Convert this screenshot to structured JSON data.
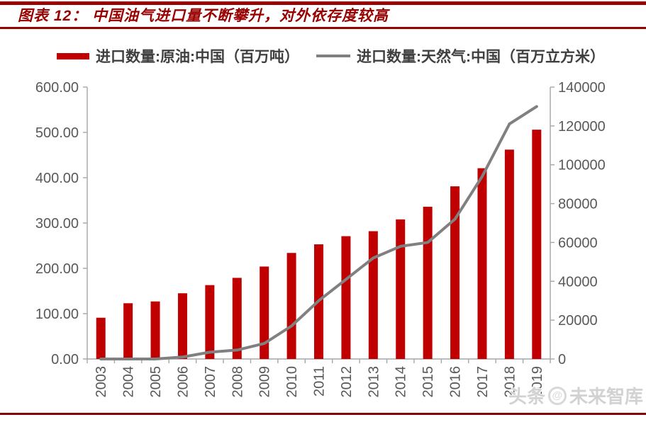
{
  "title": {
    "text": "图表 12：  中国油气进口量不断攀升，对外依存度较高"
  },
  "legend": {
    "crude": {
      "label": "进口数量:原油:中国（百万吨）",
      "color": "#c00000"
    },
    "gas": {
      "label": "进口数量:天然气:中国（百万立方米）",
      "color": "#808080"
    }
  },
  "watermark": {
    "prefix": "头条",
    "suffix": "未来智库",
    "logo": "at-circle"
  },
  "colors": {
    "brand_red": "#990000",
    "bottom_rule_red": "#8b0000",
    "bar_red": "#c00000",
    "line_gray": "#808080",
    "axis_gray": "#a6a6a6",
    "label_gray": "#595959",
    "legend_text": "#404040",
    "watermark_gray": "#d2d2d2"
  },
  "chart_data": {
    "type": "bar",
    "subtype": "bar-and-line-dual-axis",
    "title": "中国油气进口量不断攀升，对外依存度较高",
    "categories": [
      "2003",
      "2004",
      "2005",
      "2006",
      "2007",
      "2008",
      "2009",
      "2010",
      "2011",
      "2012",
      "2013",
      "2014",
      "2015",
      "2016",
      "2017",
      "2018",
      "2019"
    ],
    "series": [
      {
        "name": "进口数量:原油:中国（百万吨）",
        "type": "bar",
        "axis": "left",
        "color": "#c00000",
        "values": [
          91,
          123,
          127,
          145,
          163,
          179,
          204,
          234,
          253,
          271,
          282,
          308,
          336,
          381,
          421,
          462,
          506
        ]
      },
      {
        "name": "进口数量:天然气:中国（百万立方米）",
        "type": "line",
        "axis": "right",
        "color": "#808080",
        "values": [
          0,
          0,
          0,
          1000,
          3500,
          4600,
          8000,
          17000,
          30000,
          41000,
          52000,
          58000,
          60000,
          72000,
          94000,
          121000,
          130000
        ]
      }
    ],
    "left_axis": {
      "min": 0,
      "max": 600,
      "step": 100,
      "tick_labels": [
        "0.00",
        "100.00",
        "200.00",
        "300.00",
        "400.00",
        "500.00",
        "600.00"
      ]
    },
    "right_axis": {
      "min": 0,
      "max": 140000,
      "step": 20000,
      "tick_labels": [
        "0",
        "20000",
        "40000",
        "60000",
        "80000",
        "100000",
        "120000",
        "140000"
      ]
    },
    "grid": false,
    "legend_position": "top",
    "x_label_rotation": -90
  }
}
